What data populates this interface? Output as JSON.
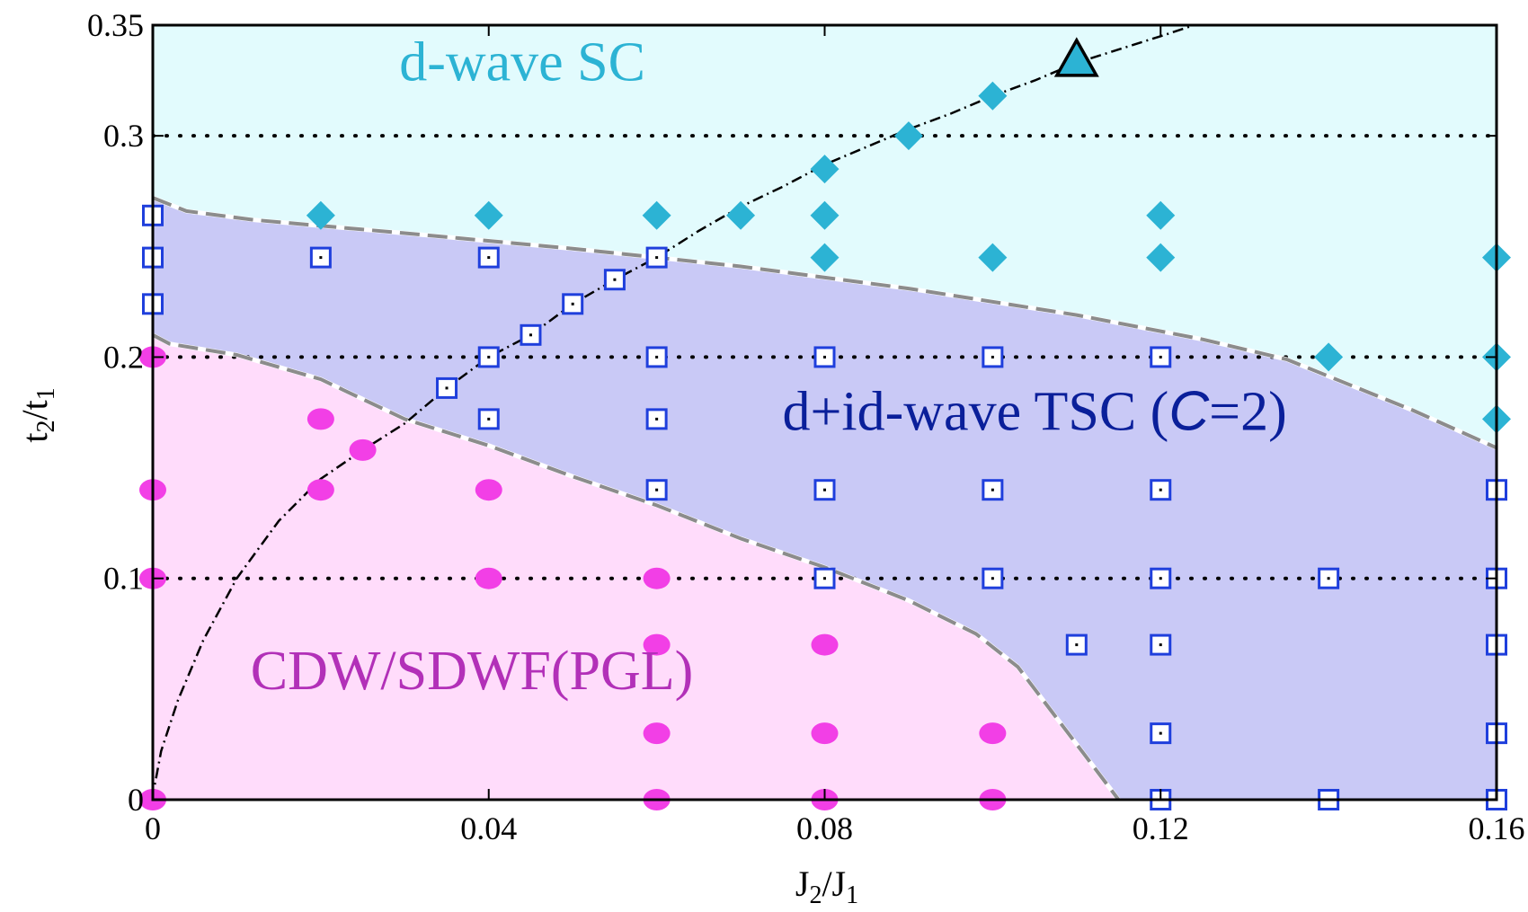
{
  "colors": {
    "dwave_bg": "#e2fbfd",
    "tsc_bg": "#c9c9f6",
    "cdw_bg": "#ffdcfb",
    "diamond": "#2cb3d4",
    "square": "#1f3fdc",
    "circle": "#f23fe6",
    "dwave_label": "#2cb3d4",
    "tsc_label": "#0a1f9a",
    "cdw_label": "#b230b8",
    "boundary": "#8c8c8c"
  },
  "chart_data": {
    "type": "scatter",
    "xlabel": {
      "main": "J",
      "sub1": "2",
      "mid": "/J",
      "sub2": "1"
    },
    "ylabel": {
      "main": "t",
      "sub1": "2",
      "mid": "/t",
      "sub2": "1"
    },
    "xlim": [
      0,
      0.16
    ],
    "ylim": [
      0,
      0.35
    ],
    "x_ticks": [
      {
        "value": 0,
        "label": "0"
      },
      {
        "value": 0.04,
        "label": "0.04"
      },
      {
        "value": 0.08,
        "label": "0.08"
      },
      {
        "value": 0.12,
        "label": "0.12"
      },
      {
        "value": 0.16,
        "label": "0.16"
      }
    ],
    "y_ticks": [
      {
        "value": 0,
        "label": "0"
      },
      {
        "value": 0.1,
        "label": "0.1"
      },
      {
        "value": 0.2,
        "label": "0.2"
      },
      {
        "value": 0.3,
        "label": "0.3"
      },
      {
        "value": 0.35,
        "label": "0.35"
      }
    ],
    "dotted_gridlines_y": [
      0.1,
      0.2,
      0.3
    ],
    "regions": [
      {
        "name": "d-wave SC",
        "label": "d-wave SC",
        "label_at": [
          0.044,
          0.325
        ]
      },
      {
        "name": "d+id-wave TSC",
        "label": "d+id-wave TSC  (C=2)",
        "label_parts": [
          "d+id-wave TSC  (",
          "C",
          "=2)"
        ],
        "label_at": [
          0.105,
          0.167
        ]
      },
      {
        "name": "CDW/SDWF(PGL)",
        "label": "CDW/SDWF(PGL)",
        "label_at": [
          0.038,
          0.05
        ]
      }
    ],
    "upper_boundary": [
      [
        0,
        0.272
      ],
      [
        0.004,
        0.266
      ],
      [
        0.012,
        0.262
      ],
      [
        0.03,
        0.256
      ],
      [
        0.05,
        0.249
      ],
      [
        0.07,
        0.241
      ],
      [
        0.09,
        0.231
      ],
      [
        0.11,
        0.219
      ],
      [
        0.125,
        0.208
      ],
      [
        0.135,
        0.199
      ],
      [
        0.15,
        0.176
      ],
      [
        0.16,
        0.159
      ]
    ],
    "lower_boundary": [
      [
        0,
        0.21
      ],
      [
        0.002,
        0.206
      ],
      [
        0.01,
        0.201
      ],
      [
        0.02,
        0.19
      ],
      [
        0.03,
        0.172
      ],
      [
        0.04,
        0.16
      ],
      [
        0.05,
        0.146
      ],
      [
        0.06,
        0.133
      ],
      [
        0.07,
        0.118
      ],
      [
        0.08,
        0.105
      ],
      [
        0.09,
        0.09
      ],
      [
        0.098,
        0.075
      ],
      [
        0.103,
        0.06
      ],
      [
        0.107,
        0.04
      ],
      [
        0.111,
        0.02
      ],
      [
        0.115,
        0
      ]
    ],
    "series": [
      {
        "name": "d-wave SC",
        "marker": "diamond",
        "points": [
          [
            0.02,
            0.264
          ],
          [
            0.04,
            0.264
          ],
          [
            0.06,
            0.264
          ],
          [
            0.07,
            0.264
          ],
          [
            0.08,
            0.264
          ],
          [
            0.08,
            0.285
          ],
          [
            0.08,
            0.245
          ],
          [
            0.09,
            0.3
          ],
          [
            0.1,
            0.318
          ],
          [
            0.1,
            0.245
          ],
          [
            0.12,
            0.264
          ],
          [
            0.12,
            0.245
          ],
          [
            0.14,
            0.2
          ],
          [
            0.16,
            0.245
          ],
          [
            0.16,
            0.2
          ],
          [
            0.16,
            0.172
          ]
        ]
      },
      {
        "name": "d+id-wave TSC",
        "marker": "square",
        "points": [
          [
            0,
            0.264
          ],
          [
            0,
            0.245
          ],
          [
            0,
            0.224
          ],
          [
            0.02,
            0.245
          ],
          [
            0.04,
            0.245
          ],
          [
            0.06,
            0.245
          ],
          [
            0.055,
            0.235
          ],
          [
            0.05,
            0.224
          ],
          [
            0.045,
            0.21
          ],
          [
            0.04,
            0.2
          ],
          [
            0.035,
            0.186
          ],
          [
            0.04,
            0.172
          ],
          [
            0.06,
            0.2
          ],
          [
            0.06,
            0.172
          ],
          [
            0.06,
            0.14
          ],
          [
            0.08,
            0.2
          ],
          [
            0.08,
            0.14
          ],
          [
            0.08,
            0.1
          ],
          [
            0.1,
            0.2
          ],
          [
            0.1,
            0.14
          ],
          [
            0.1,
            0.1
          ],
          [
            0.11,
            0.07
          ],
          [
            0.12,
            0.2
          ],
          [
            0.12,
            0.14
          ],
          [
            0.12,
            0.1
          ],
          [
            0.12,
            0.07
          ],
          [
            0.12,
            0.03
          ],
          [
            0.12,
            0
          ],
          [
            0.14,
            0.1
          ],
          [
            0.14,
            0
          ],
          [
            0.16,
            0.14
          ],
          [
            0.16,
            0.1
          ],
          [
            0.16,
            0.07
          ],
          [
            0.16,
            0.03
          ],
          [
            0.16,
            0
          ]
        ]
      },
      {
        "name": "CDW/SDWF(PGL)",
        "marker": "circle",
        "points": [
          [
            0,
            0.2
          ],
          [
            0,
            0.14
          ],
          [
            0,
            0.1
          ],
          [
            0,
            0
          ],
          [
            0.02,
            0.172
          ],
          [
            0.02,
            0.14
          ],
          [
            0.025,
            0.158
          ],
          [
            0.04,
            0.14
          ],
          [
            0.04,
            0.1
          ],
          [
            0.06,
            0.1
          ],
          [
            0.06,
            0.07
          ],
          [
            0.06,
            0.03
          ],
          [
            0.06,
            0
          ],
          [
            0.08,
            0.07
          ],
          [
            0.08,
            0.03
          ],
          [
            0.08,
            0
          ],
          [
            0.1,
            0.03
          ],
          [
            0.1,
            0
          ]
        ]
      },
      {
        "name": "endpoint",
        "marker": "triangle",
        "points": [
          [
            0.11,
            0.333
          ]
        ]
      }
    ],
    "dash_dot_curve": [
      [
        0,
        0
      ],
      [
        0.0002,
        0.006
      ],
      [
        0.001,
        0.022
      ],
      [
        0.003,
        0.045
      ],
      [
        0.006,
        0.072
      ],
      [
        0.01,
        0.1
      ],
      [
        0.015,
        0.126
      ],
      [
        0.02,
        0.145
      ],
      [
        0.025,
        0.158
      ],
      [
        0.03,
        0.17
      ],
      [
        0.035,
        0.186
      ],
      [
        0.04,
        0.2
      ],
      [
        0.045,
        0.21
      ],
      [
        0.05,
        0.224
      ],
      [
        0.055,
        0.235
      ],
      [
        0.06,
        0.245
      ],
      [
        0.065,
        0.257
      ],
      [
        0.07,
        0.268
      ],
      [
        0.075,
        0.277
      ],
      [
        0.08,
        0.287
      ],
      [
        0.085,
        0.295
      ],
      [
        0.09,
        0.303
      ],
      [
        0.095,
        0.31
      ],
      [
        0.1,
        0.318
      ],
      [
        0.105,
        0.325
      ],
      [
        0.11,
        0.333
      ],
      [
        0.115,
        0.339
      ],
      [
        0.12,
        0.345
      ],
      [
        0.124,
        0.35
      ]
    ]
  }
}
